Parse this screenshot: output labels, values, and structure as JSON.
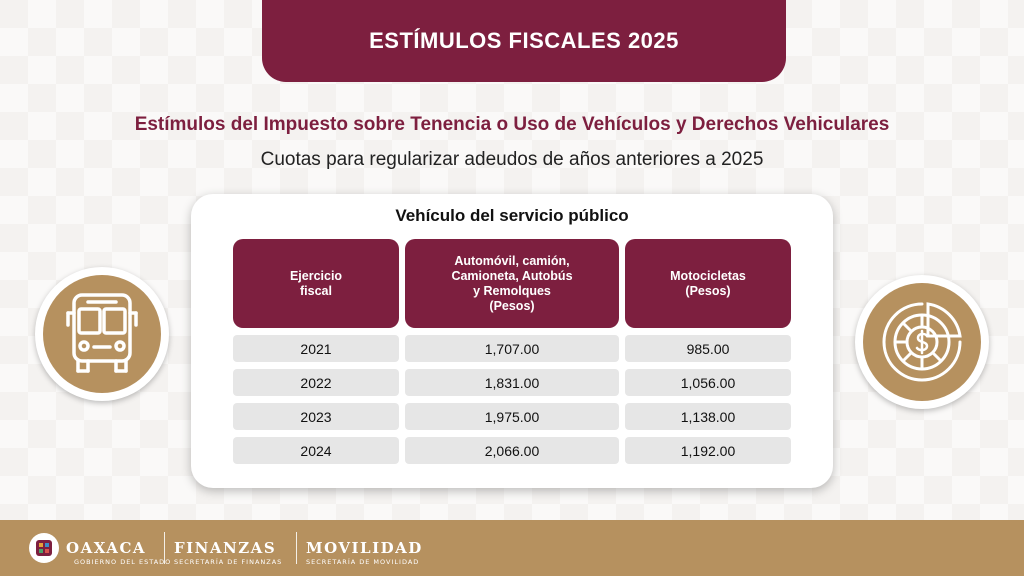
{
  "header": {
    "title": "ESTÍMULOS FISCALES 2025"
  },
  "subtitle": "Estímulos del Impuesto sobre Tenencia o Uso de Vehículos y Derechos Vehiculares",
  "description": "Cuotas para regularizar adeudos de años anteriores a 2025",
  "card": {
    "title": "Vehículo del servicio público",
    "columns": [
      {
        "lines": [
          "Ejercicio",
          "fiscal"
        ]
      },
      {
        "lines": [
          "Automóvil, camión,",
          "Camioneta, Autobús",
          "y Remolques",
          "(Pesos)"
        ]
      },
      {
        "lines": [
          "Motocicletas",
          "(Pesos)"
        ]
      }
    ],
    "rows": [
      [
        "2021",
        "1,707.00",
        "985.00"
      ],
      [
        "2022",
        "1,831.00",
        "1,056.00"
      ],
      [
        "2023",
        "1,975.00",
        "1,138.00"
      ],
      [
        "2024",
        "2,066.00",
        "1,192.00"
      ]
    ]
  },
  "icons": {
    "left": "bus-icon",
    "right": "money-chart-icon"
  },
  "footer": {
    "oaxaca": {
      "name": "OAXACA",
      "sub": "GOBIERNO DEL ESTADO"
    },
    "finanzas": {
      "name": "FINANZAS",
      "sub": "SECRETARÍA DE FINANZAS"
    },
    "movilidad": {
      "name": "MOVILIDAD",
      "sub": "SECRETARÍA DE MOVILIDAD"
    }
  },
  "colors": {
    "primary": "#7d1f3f",
    "gold": "#b6915f",
    "cell": "#e6e6e6"
  }
}
